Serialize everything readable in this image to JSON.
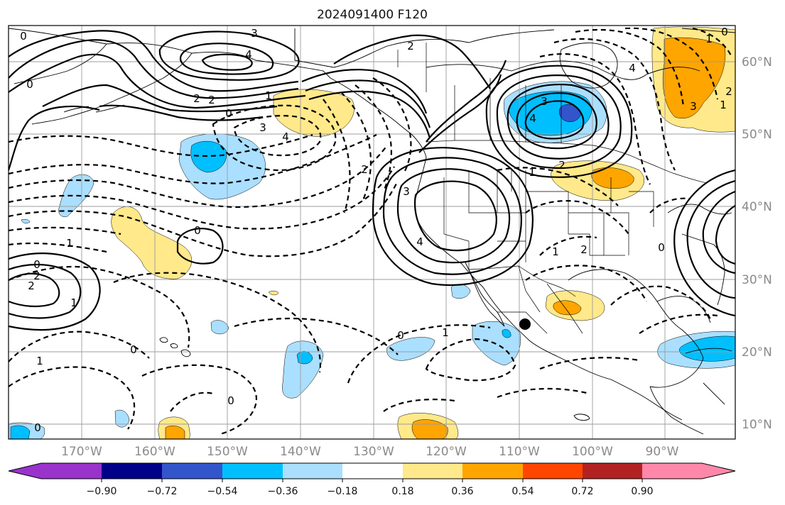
{
  "title": "2024091400 F120",
  "colors": {
    "neg_090": "#9933cc",
    "neg_072": "#000088",
    "neg_054": "#3355cc",
    "neg_036": "#00bfff",
    "neg_018": "#aadfff",
    "neutral": "#ffffff",
    "pos_018": "#ffe98a",
    "pos_036": "#ffa500",
    "pos_054": "#ff4500",
    "pos_072": "#b22222",
    "pos_090": "#ff88aa"
  },
  "lat_labels": [
    "60°N",
    "50°N",
    "40°N",
    "30°N",
    "20°N",
    "10°N"
  ],
  "lon_labels": [
    "170°W",
    "160°W",
    "150°W",
    "140°W",
    "130°W",
    "120°W",
    "110°W",
    "100°W",
    "90°W"
  ],
  "colorbar": {
    "ticks": [
      "−0.90",
      "−0.72",
      "−0.54",
      "−0.36",
      "−0.18",
      "0.18",
      "0.36",
      "0.54",
      "0.72",
      "0.90"
    ]
  },
  "contour_labels": {
    "c1": "0",
    "c2": "3",
    "c3": "4",
    "c4": "2",
    "c5": "2",
    "c6": "0",
    "c7": "3",
    "c8": "4",
    "c9": "0",
    "c10": "2",
    "c11": "1",
    "c12": "0",
    "c13": "1",
    "c14": "0",
    "c15": "2",
    "c16": "2",
    "c17": "1",
    "c18": "0",
    "c19": "1",
    "c20": "0",
    "c21": "0",
    "c22": "2",
    "c23": "3",
    "c24": "4",
    "c25": "3",
    "c26": "4",
    "c27": "1",
    "c28": "2",
    "c29": "1",
    "c30": "2",
    "c31": "0",
    "c32": "1",
    "c33": "0",
    "c34": "4",
    "c35": "3",
    "c36": "2",
    "c37": "1",
    "c38": "0",
    "c39": "1"
  }
}
